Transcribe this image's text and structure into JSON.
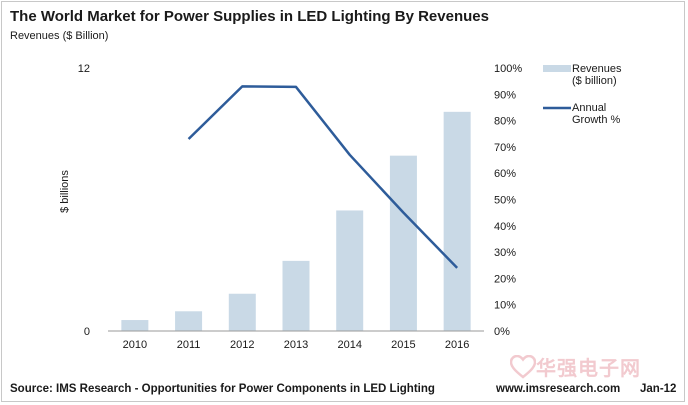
{
  "header": {
    "title": "The World Market for Power Supplies in LED Lighting By Revenues",
    "subtitle": "Revenues ($ Billion)"
  },
  "footer": {
    "source": "Source: IMS Research  -  Opportunities for Power Components in LED Lighting",
    "website": "www.imsresearch.com",
    "date": "Jan-12"
  },
  "watermark": {
    "text": "华强电子网",
    "icon": "heart-logo-icon"
  },
  "chart_data": {
    "type": "bar",
    "categories": [
      "2010",
      "2011",
      "2012",
      "2013",
      "2014",
      "2015",
      "2016"
    ],
    "series": [
      {
        "name": "Revenues ($ billion)",
        "type": "bar",
        "axis": "left",
        "values": [
          0.5,
          0.9,
          1.7,
          3.2,
          5.5,
          8.0,
          10.0
        ],
        "color": "#c9d9e6"
      },
      {
        "name": "Annual Growth %",
        "type": "line",
        "axis": "right",
        "values": [
          null,
          73,
          93,
          92.8,
          67,
          45,
          24
        ],
        "color": "#2e5c9a"
      }
    ],
    "ylabel": "$ billions",
    "ylim": [
      0,
      12
    ],
    "yticks": [
      "0",
      "12"
    ],
    "y2lim": [
      0,
      100
    ],
    "y2ticks": [
      "0%",
      "10%",
      "20%",
      "30%",
      "40%",
      "50%",
      "60%",
      "70%",
      "80%",
      "90%",
      "100%"
    ],
    "legend": {
      "placement": "right",
      "items": [
        {
          "label1": "Revenues",
          "label2": "($ billion)"
        },
        {
          "label1": "Annual",
          "label2": "Growth %"
        }
      ]
    },
    "grid": false
  }
}
